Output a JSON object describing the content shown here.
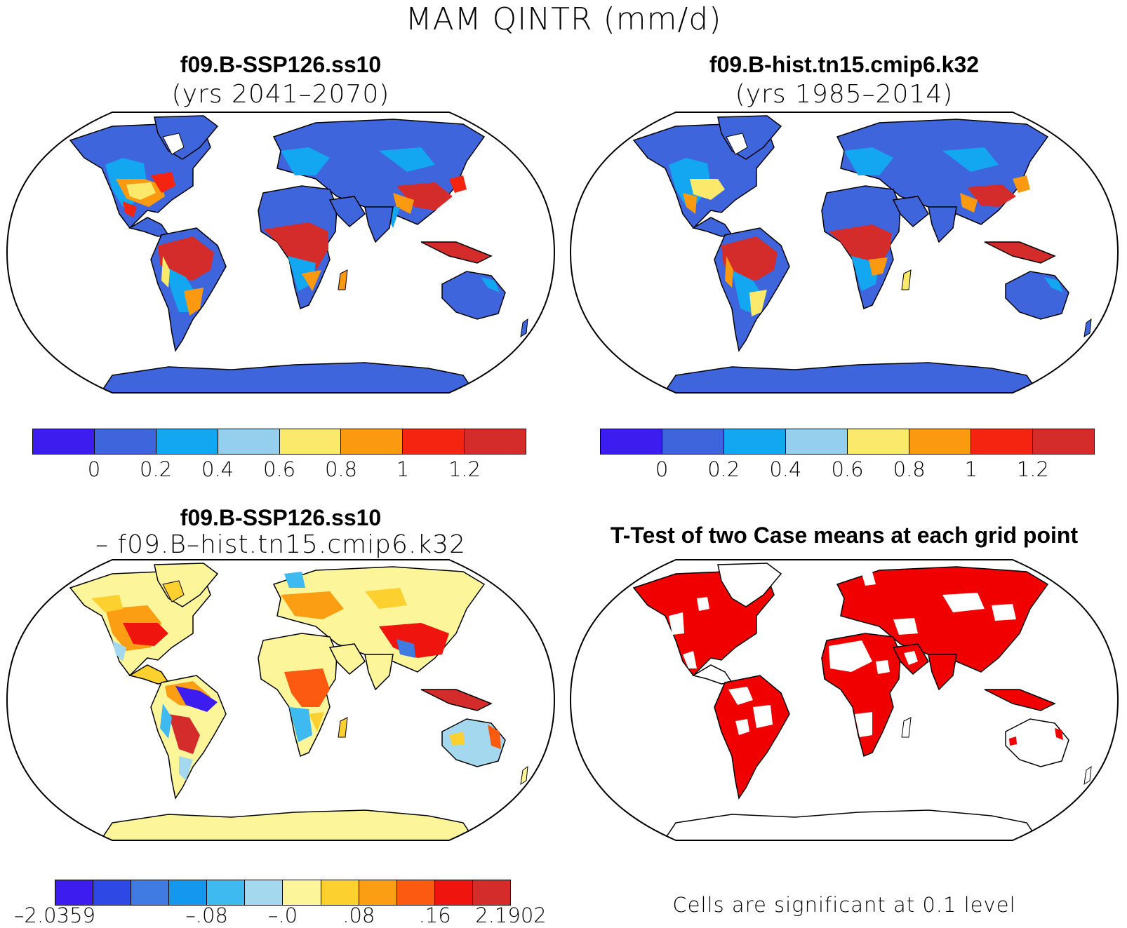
{
  "figure_title": "MAM QINTR (mm/d)",
  "panels": [
    {
      "title": "f09.B-SSP126.ss10",
      "subtitle": "(yrs 2041–2070)"
    },
    {
      "title": "f09.B-hist.tn15.cmip6.k32",
      "subtitle": "(yrs 1985–2014)"
    },
    {
      "title": "f09.B-SSP126.ss10",
      "subtitle": "– f09.B–hist.tn15.cmip6.k32"
    },
    {
      "title": "T-Test of two Case means at each grid point",
      "subtitle": ""
    }
  ],
  "colorbar_abs": {
    "colors": [
      "#3d1cf0",
      "#3f65dc",
      "#12a7f0",
      "#94d0ee",
      "#fbe96b",
      "#fb9a10",
      "#f52410",
      "#d42b2b"
    ],
    "ticks": [
      "0",
      "0.2",
      "0.4",
      "0.6",
      "0.8",
      "1",
      "1.2"
    ]
  },
  "colorbar_diff": {
    "colors": [
      "#3d1cf0",
      "#2e48e6",
      "#3f7be0",
      "#1497ee",
      "#3fbaf0",
      "#a4d8ee",
      "#fdf59a",
      "#fcd02e",
      "#fb9e14",
      "#fb5a10",
      "#f0140e",
      "#d42b2b"
    ],
    "ticks": [
      "–2.0359",
      "–.08",
      "–.0",
      ".08",
      ".16",
      "2.1902"
    ]
  },
  "significance_note": "Cells are significant at 0.1 level",
  "colors": {
    "ocean": "#ffffff",
    "land_low": "#3f65dc",
    "significant": "#f00000",
    "diff_neutral": "#fdf59a"
  }
}
